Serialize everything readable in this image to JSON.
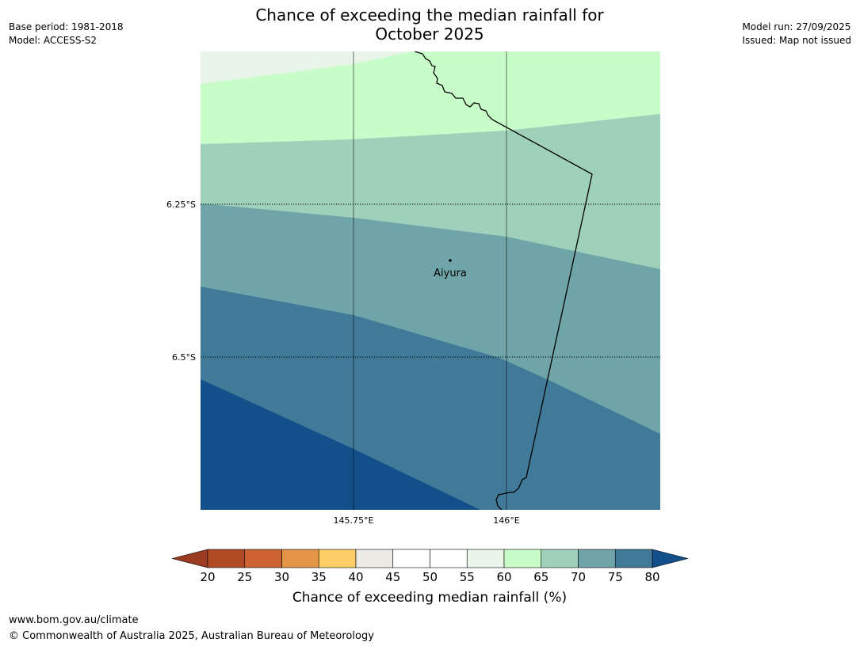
{
  "header": {
    "base_period": "Base period: 1981-2018",
    "model": "Model: ACCESS-S2",
    "model_run": "Model run: 27/09/2025",
    "issued": "Issued: Map not issued",
    "title_line1": "Chance of exceeding the median rainfall for",
    "title_line2": "October 2025"
  },
  "map": {
    "place_label": "Aiyura",
    "lat_labels": [
      "6.25°S",
      "6.5°S"
    ],
    "lon_labels": [
      "145.75°E",
      "146°E"
    ],
    "zone_colors": {
      "55-60": "#eaf5ea",
      "60-65": "#c8fcc8",
      "65-70": "#9ed0ba",
      "70-75": "#6fa4a8",
      "75-80": "#417a98",
      "above-80": "#134f8b"
    },
    "border_color": "#000000"
  },
  "colorbar": {
    "title": "Chance of exceeding median rainfall (%)",
    "ticks": [
      "20",
      "25",
      "30",
      "35",
      "40",
      "45",
      "50",
      "55",
      "60",
      "65",
      "70",
      "75",
      "80"
    ],
    "below_color": "#9b3b22",
    "above_color": "#134f8b",
    "colors": [
      "#b24a25",
      "#cd6332",
      "#e39546",
      "#fdcd66",
      "#ede9e5",
      "#ffffff",
      "#ffffff",
      "#eaf5ea",
      "#c8fcc8",
      "#9ed0ba",
      "#6fa4a8",
      "#417a98"
    ]
  },
  "footer": {
    "url": "www.bom.gov.au/climate",
    "copyright": "© Commonwealth of Australia 2025, Australian Bureau of Meteorology"
  }
}
